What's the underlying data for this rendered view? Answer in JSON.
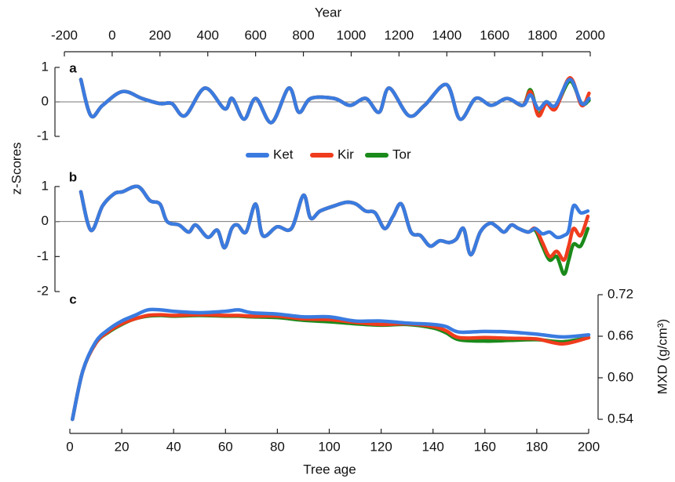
{
  "chart_data": [
    {
      "type": "line",
      "panel_label": "a",
      "xlabel": "Year",
      "ylabel": "z-Scores",
      "xlim": [
        -200,
        2000
      ],
      "xticks": [
        -200,
        0,
        200,
        400,
        600,
        800,
        1000,
        1200,
        1400,
        1600,
        1800,
        2000
      ],
      "ylim": [
        -1,
        1
      ],
      "yticks": [
        -1,
        0,
        1
      ],
      "zero_line": true,
      "x": [
        -131,
        -89,
        -40,
        43,
        125,
        200,
        250,
        305,
        388,
        470,
        502,
        552,
        601,
        667,
        739,
        781,
        831,
        929,
        995,
        1061,
        1117,
        1159,
        1241,
        1307,
        1399,
        1455,
        1521,
        1586,
        1652,
        1718,
        1750,
        1783,
        1816,
        1855,
        1915,
        1964,
        1995
      ],
      "series": [
        {
          "name": "Ket",
          "color": "#3a7be0",
          "values": [
            0.65,
            -0.4,
            -0.1,
            0.3,
            0.1,
            -0.05,
            -0.05,
            -0.4,
            0.4,
            -0.2,
            0.1,
            -0.5,
            0.1,
            -0.6,
            0.4,
            -0.3,
            0.1,
            0.1,
            -0.1,
            0.1,
            -0.3,
            0.4,
            -0.4,
            -0.1,
            0.5,
            -0.5,
            0.1,
            -0.1,
            0.1,
            -0.1,
            0.2,
            -0.2,
            0.0,
            -0.1,
            0.65,
            -0.05,
            0.1
          ]
        },
        {
          "name": "Kir",
          "color": "#f03c1e",
          "values": [
            0.65,
            -0.4,
            -0.1,
            0.3,
            0.1,
            -0.05,
            -0.05,
            -0.4,
            0.4,
            -0.2,
            0.1,
            -0.5,
            0.1,
            -0.6,
            0.4,
            -0.3,
            0.1,
            0.1,
            -0.1,
            0.1,
            -0.3,
            0.4,
            -0.4,
            -0.1,
            0.5,
            -0.5,
            0.1,
            -0.1,
            0.1,
            -0.1,
            0.3,
            -0.4,
            -0.05,
            -0.2,
            0.7,
            -0.1,
            0.25
          ]
        },
        {
          "name": "Tor",
          "color": "#1a8a1a",
          "values": [
            0.65,
            -0.4,
            -0.1,
            0.3,
            0.1,
            -0.05,
            -0.05,
            -0.4,
            0.4,
            -0.2,
            0.1,
            -0.5,
            0.1,
            -0.6,
            0.4,
            -0.3,
            0.1,
            0.1,
            -0.1,
            0.1,
            -0.3,
            0.4,
            -0.4,
            -0.1,
            0.5,
            -0.5,
            0.1,
            -0.1,
            0.1,
            -0.1,
            0.35,
            -0.35,
            0.0,
            -0.15,
            0.6,
            -0.05,
            0.05
          ]
        }
      ]
    },
    {
      "type": "line",
      "panel_label": "b",
      "xlim": [
        -200,
        2000
      ],
      "ylim": [
        -2,
        1
      ],
      "yticks": [
        -2,
        -1,
        0,
        1
      ],
      "zero_line": true,
      "x": [
        -131,
        -89,
        -40,
        10,
        43,
        108,
        158,
        200,
        230,
        280,
        320,
        350,
        400,
        440,
        470,
        500,
        525,
        560,
        600,
        630,
        690,
        750,
        800,
        830,
        870,
        930,
        980,
        1020,
        1060,
        1100,
        1140,
        1175,
        1210,
        1250,
        1290,
        1330,
        1370,
        1410,
        1440,
        1470,
        1500,
        1540,
        1580,
        1610,
        1640,
        1670,
        1700,
        1740,
        1770,
        1800,
        1830,
        1860,
        1890,
        1910,
        1930,
        1960,
        1990
      ],
      "series": [
        {
          "name": "Ket",
          "color": "#3a7be0",
          "values": [
            0.85,
            -0.25,
            0.45,
            0.8,
            0.85,
            1.0,
            0.6,
            0.5,
            0.0,
            -0.1,
            -0.3,
            -0.1,
            -0.45,
            -0.25,
            -0.75,
            -0.2,
            -0.1,
            -0.3,
            0.5,
            -0.4,
            -0.15,
            -0.2,
            0.75,
            0.1,
            0.3,
            0.45,
            0.55,
            0.5,
            0.3,
            0.25,
            -0.2,
            0.15,
            0.5,
            -0.3,
            -0.4,
            -0.7,
            -0.55,
            -0.6,
            -0.5,
            -0.2,
            -0.95,
            -0.3,
            -0.05,
            -0.15,
            -0.3,
            -0.1,
            -0.2,
            -0.3,
            -0.2,
            -0.35,
            -0.3,
            -0.45,
            -0.4,
            -0.25,
            0.45,
            0.25,
            0.3
          ]
        },
        {
          "name": "Kir",
          "color": "#f03c1e",
          "values": [
            0.85,
            -0.25,
            0.45,
            0.8,
            0.85,
            1.0,
            0.6,
            0.5,
            0.0,
            -0.1,
            -0.3,
            -0.1,
            -0.45,
            -0.25,
            -0.75,
            -0.2,
            -0.1,
            -0.3,
            0.5,
            -0.4,
            -0.15,
            -0.2,
            0.75,
            0.1,
            0.3,
            0.45,
            0.55,
            0.5,
            0.3,
            0.25,
            -0.2,
            0.15,
            0.5,
            -0.3,
            -0.4,
            -0.7,
            -0.55,
            -0.6,
            -0.5,
            -0.2,
            -0.95,
            -0.3,
            -0.05,
            -0.15,
            -0.3,
            -0.1,
            -0.2,
            -0.3,
            -0.2,
            -0.6,
            -1.0,
            -0.85,
            -1.1,
            -0.7,
            -0.2,
            -0.4,
            0.15
          ]
        },
        {
          "name": "Tor",
          "color": "#1a8a1a",
          "values": [
            0.85,
            -0.25,
            0.45,
            0.8,
            0.85,
            1.0,
            0.6,
            0.5,
            0.0,
            -0.1,
            -0.3,
            -0.1,
            -0.45,
            -0.25,
            -0.75,
            -0.2,
            -0.1,
            -0.3,
            0.5,
            -0.4,
            -0.15,
            -0.2,
            0.75,
            0.1,
            0.3,
            0.45,
            0.55,
            0.5,
            0.3,
            0.25,
            -0.2,
            0.15,
            0.5,
            -0.3,
            -0.4,
            -0.7,
            -0.55,
            -0.6,
            -0.5,
            -0.2,
            -0.95,
            -0.3,
            -0.05,
            -0.15,
            -0.3,
            -0.1,
            -0.2,
            -0.3,
            -0.25,
            -0.7,
            -1.1,
            -1.0,
            -1.5,
            -1.1,
            -0.65,
            -0.7,
            -0.2
          ]
        }
      ]
    },
    {
      "type": "line",
      "panel_label": "c",
      "xlabel": "Tree age",
      "ylabel": "MXD (g/cm³)",
      "xlim": [
        0,
        200
      ],
      "xticks": [
        0,
        20,
        40,
        60,
        80,
        100,
        120,
        140,
        160,
        180,
        200
      ],
      "ylim": [
        0.54,
        0.72
      ],
      "yticks": [
        0.54,
        {
          "value": 0.6,
          "label": "0.60"
        },
        0.66,
        0.72
      ],
      "x": [
        1,
        5,
        10,
        15,
        20,
        25,
        30,
        35,
        40,
        50,
        60,
        65,
        70,
        80,
        90,
        100,
        110,
        120,
        130,
        140,
        145,
        150,
        160,
        170,
        180,
        190,
        200
      ],
      "series": [
        {
          "name": "Ket",
          "color": "#3a7be0",
          "values": [
            0.54,
            0.61,
            0.652,
            0.67,
            0.682,
            0.69,
            0.698,
            0.698,
            0.696,
            0.694,
            0.696,
            0.698,
            0.694,
            0.692,
            0.688,
            0.688,
            0.682,
            0.682,
            0.679,
            0.677,
            0.674,
            0.666,
            0.667,
            0.666,
            0.663,
            0.659,
            0.662
          ]
        },
        {
          "name": "Kir",
          "color": "#f03c1e",
          "values": [
            0.54,
            0.61,
            0.65,
            0.667,
            0.678,
            0.685,
            0.69,
            0.691,
            0.69,
            0.691,
            0.69,
            0.69,
            0.689,
            0.689,
            0.685,
            0.684,
            0.68,
            0.677,
            0.678,
            0.674,
            0.668,
            0.658,
            0.658,
            0.657,
            0.656,
            0.649,
            0.658
          ]
        },
        {
          "name": "Tor",
          "color": "#1a8a1a",
          "values": [
            0.54,
            0.61,
            0.65,
            0.666,
            0.677,
            0.685,
            0.689,
            0.69,
            0.689,
            0.69,
            0.689,
            0.689,
            0.688,
            0.687,
            0.683,
            0.681,
            0.678,
            0.676,
            0.677,
            0.672,
            0.665,
            0.655,
            0.653,
            0.654,
            0.655,
            0.652,
            0.658
          ]
        }
      ]
    }
  ]
}
